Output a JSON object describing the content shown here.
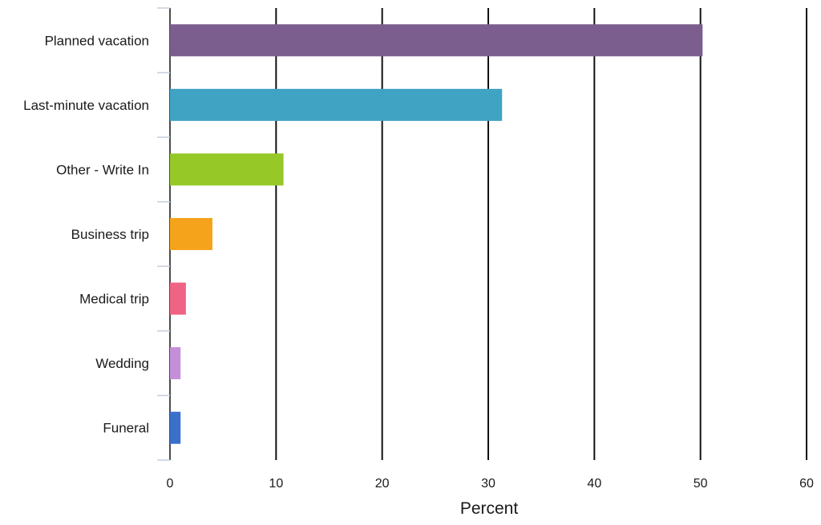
{
  "chart_data": {
    "type": "bar",
    "orientation": "horizontal",
    "categories": [
      "Planned vacation",
      "Last-minute vacation",
      "Other - Write In",
      "Business trip",
      "Medical trip",
      "Wedding",
      "Funeral"
    ],
    "values": [
      50.2,
      31.3,
      10.7,
      4.0,
      1.5,
      1.0,
      1.0
    ],
    "colors": [
      "#7b5e8e",
      "#40a3c4",
      "#96c827",
      "#f4a31b",
      "#ef6384",
      "#c48fd9",
      "#3a6fca"
    ],
    "xlabel": "Percent",
    "xlim": [
      0,
      60
    ],
    "xticks": [
      0,
      10,
      20,
      30,
      40,
      50,
      60
    ],
    "grid": "vertical"
  }
}
